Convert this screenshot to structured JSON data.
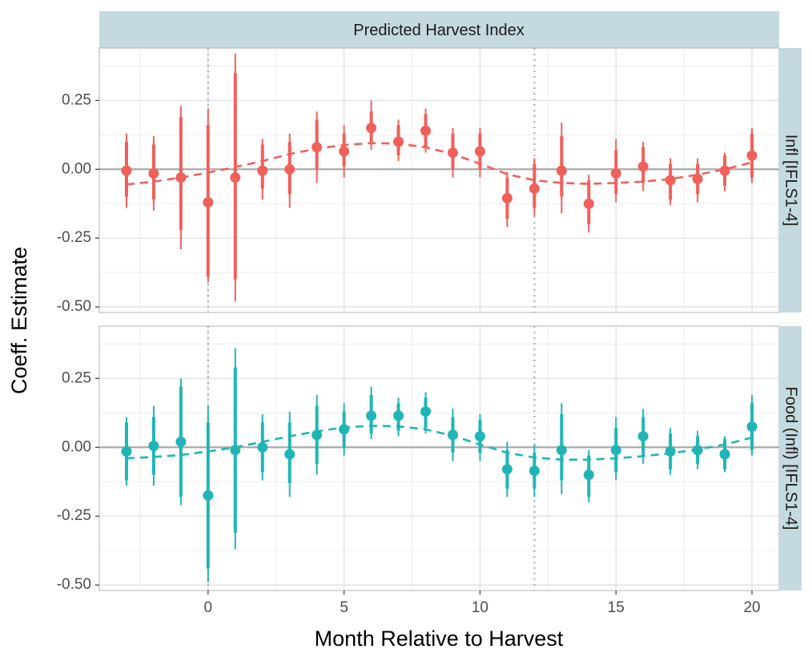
{
  "chart_data": {
    "type": "scatter",
    "title": "Predicted Harvest Index",
    "xlabel": "Month Relative to Harvest",
    "ylabel": "Coeff. Estimate",
    "xlim": [
      -4,
      21
    ],
    "ylim": [
      -0.52,
      0.44
    ],
    "x_ticks": [
      0,
      5,
      10,
      15,
      20
    ],
    "x_tick_labels": [
      "0",
      "5",
      "10",
      "15",
      "20"
    ],
    "y_ticks": [
      0.25,
      0.0,
      -0.25,
      -0.5
    ],
    "y_tick_labels": [
      "0.25",
      "0.00",
      "-0.25",
      "-0.50"
    ],
    "vlines": [
      0,
      12
    ],
    "hline": 0,
    "grid": true,
    "legend": "none",
    "x": [
      -3,
      -2,
      -1,
      0,
      1,
      2,
      3,
      4,
      5,
      6,
      7,
      8,
      9,
      10,
      11,
      12,
      13,
      14,
      15,
      16,
      17,
      18,
      19,
      20
    ],
    "panels": [
      {
        "name": "Infl [IFLS1-4]",
        "color": "#f0605a",
        "estimate": [
          -0.005,
          -0.015,
          -0.03,
          -0.12,
          -0.03,
          -0.005,
          0.0,
          0.08,
          0.065,
          0.15,
          0.1,
          0.14,
          0.06,
          0.065,
          -0.105,
          -0.07,
          -0.005,
          -0.125,
          -0.015,
          0.01,
          -0.04,
          -0.035,
          -0.005,
          0.05
        ],
        "ci90_low": [
          -0.1,
          -0.11,
          -0.22,
          -0.39,
          -0.4,
          -0.07,
          -0.09,
          0.0,
          0.01,
          0.09,
          0.05,
          0.08,
          0.0,
          0.0,
          -0.18,
          -0.14,
          -0.1,
          -0.2,
          -0.09,
          -0.05,
          -0.11,
          -0.09,
          -0.06,
          -0.03
        ],
        "ci90_high": [
          0.1,
          0.09,
          0.19,
          0.16,
          0.35,
          0.09,
          0.1,
          0.18,
          0.13,
          0.21,
          0.16,
          0.2,
          0.13,
          0.13,
          -0.03,
          0.02,
          0.12,
          -0.04,
          0.07,
          0.08,
          0.02,
          0.02,
          0.05,
          0.13
        ],
        "ci95_low": [
          -0.14,
          -0.15,
          -0.29,
          -0.41,
          -0.48,
          -0.11,
          -0.14,
          -0.05,
          -0.03,
          0.07,
          0.03,
          0.06,
          -0.03,
          -0.03,
          -0.21,
          -0.17,
          -0.16,
          -0.23,
          -0.12,
          -0.08,
          -0.13,
          -0.12,
          -0.08,
          -0.05
        ],
        "ci95_high": [
          0.13,
          0.12,
          0.23,
          0.22,
          0.42,
          0.11,
          0.13,
          0.21,
          0.16,
          0.25,
          0.18,
          0.22,
          0.15,
          0.15,
          -0.01,
          0.04,
          0.17,
          -0.02,
          0.11,
          0.1,
          0.04,
          0.04,
          0.06,
          0.15
        ],
        "fit": [
          -0.055,
          -0.045,
          -0.03,
          -0.012,
          0.008,
          0.03,
          0.055,
          0.075,
          0.088,
          0.095,
          0.093,
          0.08,
          0.055,
          0.02,
          -0.018,
          -0.04,
          -0.05,
          -0.053,
          -0.05,
          -0.045,
          -0.035,
          -0.02,
          0.0,
          0.025
        ]
      },
      {
        "name": "Food (Infl) [IFLS1-4]",
        "color": "#20b5b5",
        "estimate": [
          -0.015,
          0.005,
          0.02,
          -0.175,
          -0.01,
          0.0,
          -0.025,
          0.045,
          0.065,
          0.115,
          0.115,
          0.13,
          0.045,
          0.04,
          -0.08,
          -0.085,
          -0.01,
          -0.1,
          -0.01,
          0.04,
          -0.015,
          -0.01,
          -0.025,
          0.075
        ],
        "ci90_low": [
          -0.12,
          -0.1,
          -0.18,
          -0.44,
          -0.31,
          -0.09,
          -0.13,
          -0.06,
          0.0,
          0.05,
          0.06,
          0.07,
          -0.02,
          -0.02,
          -0.15,
          -0.15,
          -0.12,
          -0.18,
          -0.09,
          -0.03,
          -0.08,
          -0.06,
          -0.08,
          -0.01
        ],
        "ci90_high": [
          0.09,
          0.11,
          0.22,
          0.09,
          0.29,
          0.09,
          0.09,
          0.15,
          0.13,
          0.19,
          0.16,
          0.18,
          0.11,
          0.1,
          -0.01,
          -0.02,
          0.12,
          -0.03,
          0.07,
          0.11,
          0.05,
          0.04,
          0.03,
          0.16
        ],
        "ci95_low": [
          -0.14,
          -0.14,
          -0.21,
          -0.49,
          -0.37,
          -0.12,
          -0.18,
          -0.1,
          -0.03,
          0.03,
          0.04,
          0.05,
          -0.05,
          -0.05,
          -0.18,
          -0.18,
          -0.17,
          -0.2,
          -0.12,
          -0.06,
          -0.1,
          -0.08,
          -0.09,
          -0.03
        ],
        "ci95_high": [
          0.11,
          0.15,
          0.25,
          0.15,
          0.36,
          0.12,
          0.13,
          0.19,
          0.16,
          0.22,
          0.18,
          0.2,
          0.14,
          0.12,
          0.02,
          0.01,
          0.16,
          -0.01,
          0.11,
          0.14,
          0.07,
          0.06,
          0.04,
          0.19
        ],
        "fit": [
          -0.04,
          -0.035,
          -0.028,
          -0.015,
          0.0,
          0.02,
          0.04,
          0.058,
          0.072,
          0.078,
          0.076,
          0.065,
          0.042,
          0.01,
          -0.02,
          -0.037,
          -0.045,
          -0.045,
          -0.04,
          -0.032,
          -0.022,
          -0.008,
          0.01,
          0.035
        ]
      }
    ]
  }
}
